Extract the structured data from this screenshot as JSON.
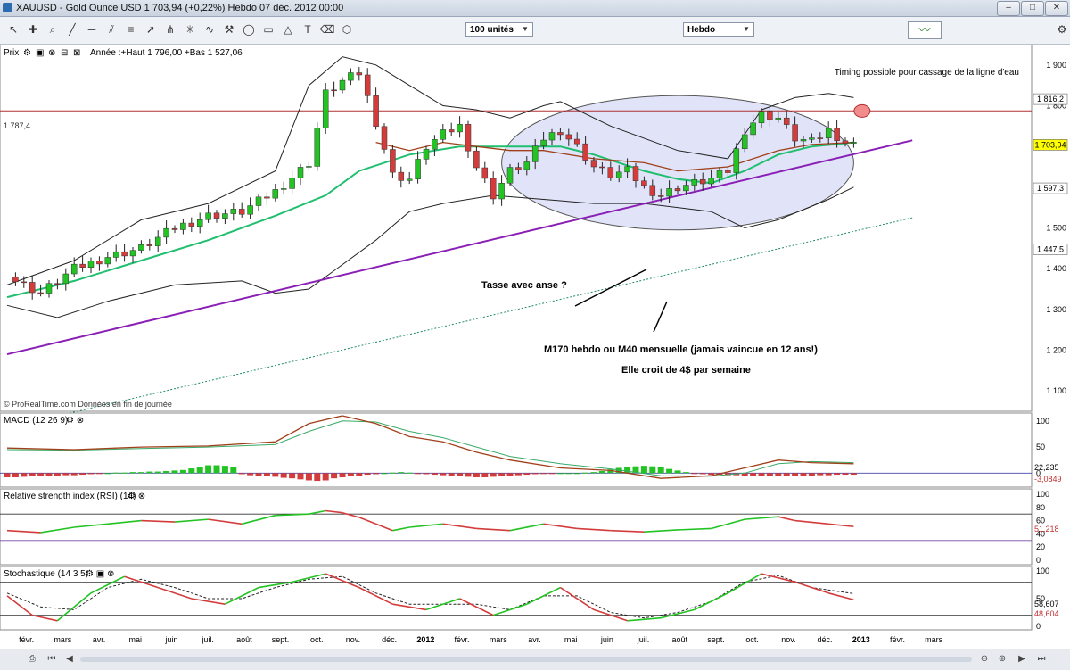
{
  "window": {
    "title": "XAUUSD - Gold Ounce USD     1 703,94 (+0,22%)     Hebdo   07 déc. 2012 00:00"
  },
  "toolbar": {
    "units_value": "100 unités",
    "period_value": "Hebdo"
  },
  "price_panel": {
    "header": "Prix",
    "legend": "Année :+Haut 1 796,00 +Bas 1 527,06",
    "note": "Timing possible pour cassage de la ligne d'eau",
    "annotation_tasse": "Tasse avec anse ?",
    "annotation_m170": "M170 hebdo ou M40 mensuelle (jamais vaincue en 12 ans!)",
    "annotation_slope": "Elle croit de 4$ par semaine",
    "source": "© ProRealTime.com  Données en fin de journée",
    "hline_label": "1 787,4",
    "price_tags": [
      {
        "value": 1816.2,
        "text": "1 816,2",
        "color": "#ffffff"
      },
      {
        "value": 1703.94,
        "text": "1 703,94",
        "color": "#ffff00"
      },
      {
        "value": 1597.3,
        "text": "1 597,3",
        "color": "#ffffff"
      },
      {
        "value": 1447.5,
        "text": "1 447,5",
        "color": "#ffffff"
      }
    ]
  },
  "macd_panel": {
    "header": "MACD (12 26 9)",
    "val1": "22,235",
    "val2": "-3,0849"
  },
  "rsi_panel": {
    "header": "Relative strength index (RSI) (14)",
    "val1": "51,218"
  },
  "stoch_panel": {
    "header": "Stochastique (14 3 5)",
    "val1": "58,607",
    "val2": "48,604"
  },
  "colors": {
    "up": "#22c322",
    "down": "#d43c3c",
    "ma_green": "#1fbf6f",
    "ma_brown": "#a0401a",
    "trendline": "#8a1fb5",
    "ellipse": "#c8ccf2",
    "hline": "#b03030"
  },
  "chart_data": [
    {
      "type": "candlestick",
      "timeframe": "weekly",
      "x_labels": [
        "févr.",
        "mars",
        "avr.",
        "mai",
        "juin",
        "juil.",
        "août",
        "sept.",
        "oct.",
        "nov.",
        "déc.",
        "2012",
        "févr.",
        "mars",
        "avr.",
        "mai",
        "juin",
        "juil.",
        "août",
        "sept.",
        "oct.",
        "nov.",
        "déc.",
        "2013",
        "févr.",
        "mars"
      ],
      "ylim": [
        1050,
        1950
      ],
      "yticks": [
        1100,
        1200,
        1300,
        1400,
        1500,
        1600,
        1700,
        1800,
        1900
      ],
      "ytick_labels": [
        "1 100",
        "1 200",
        "1 300",
        "1 400",
        "1 500",
        "1 600",
        "1 700",
        "1 800",
        "1 900"
      ],
      "close_points": [
        [
          0,
          1380
        ],
        [
          4,
          1340
        ],
        [
          8,
          1400
        ],
        [
          12,
          1430
        ],
        [
          16,
          1450
        ],
        [
          20,
          1500
        ],
        [
          24,
          1530
        ],
        [
          28,
          1540
        ],
        [
          32,
          1590
        ],
        [
          36,
          1660
        ],
        [
          38,
          1830
        ],
        [
          40,
          1860
        ],
        [
          42,
          1880
        ],
        [
          44,
          1760
        ],
        [
          46,
          1630
        ],
        [
          48,
          1620
        ],
        [
          50,
          1700
        ],
        [
          52,
          1730
        ],
        [
          54,
          1750
        ],
        [
          56,
          1650
        ],
        [
          58,
          1580
        ],
        [
          60,
          1640
        ],
        [
          62,
          1660
        ],
        [
          64,
          1720
        ],
        [
          66,
          1740
        ],
        [
          68,
          1700
        ],
        [
          70,
          1650
        ],
        [
          72,
          1630
        ],
        [
          74,
          1640
        ],
        [
          76,
          1600
        ],
        [
          78,
          1580
        ],
        [
          80,
          1600
        ],
        [
          82,
          1610
        ],
        [
          84,
          1620
        ],
        [
          86,
          1640
        ],
        [
          88,
          1740
        ],
        [
          90,
          1780
        ],
        [
          92,
          1770
        ],
        [
          94,
          1720
        ],
        [
          96,
          1710
        ],
        [
          98,
          1740
        ],
        [
          100,
          1710
        ],
        [
          101,
          1704
        ]
      ],
      "upper_band_points": [
        [
          0,
          1360
        ],
        [
          8,
          1420
        ],
        [
          16,
          1520
        ],
        [
          24,
          1560
        ],
        [
          32,
          1640
        ],
        [
          36,
          1850
        ],
        [
          40,
          1920
        ],
        [
          44,
          1900
        ],
        [
          48,
          1850
        ],
        [
          52,
          1800
        ],
        [
          56,
          1790
        ],
        [
          60,
          1770
        ],
        [
          64,
          1800
        ],
        [
          66,
          1810
        ],
        [
          72,
          1750
        ],
        [
          80,
          1690
        ],
        [
          86,
          1670
        ],
        [
          90,
          1790
        ],
        [
          94,
          1820
        ],
        [
          98,
          1830
        ],
        [
          101,
          1820
        ]
      ],
      "lower_band_points": [
        [
          0,
          1310
        ],
        [
          6,
          1280
        ],
        [
          12,
          1320
        ],
        [
          20,
          1360
        ],
        [
          28,
          1370
        ],
        [
          32,
          1340
        ],
        [
          36,
          1350
        ],
        [
          40,
          1410
        ],
        [
          44,
          1470
        ],
        [
          48,
          1540
        ],
        [
          52,
          1560
        ],
        [
          58,
          1580
        ],
        [
          64,
          1570
        ],
        [
          70,
          1560
        ],
        [
          76,
          1560
        ],
        [
          84,
          1540
        ],
        [
          88,
          1500
        ],
        [
          92,
          1520
        ],
        [
          98,
          1570
        ],
        [
          101,
          1600
        ]
      ],
      "ma_green_points": [
        [
          0,
          1330
        ],
        [
          8,
          1370
        ],
        [
          16,
          1420
        ],
        [
          24,
          1470
        ],
        [
          32,
          1530
        ],
        [
          38,
          1580
        ],
        [
          42,
          1640
        ],
        [
          48,
          1680
        ],
        [
          54,
          1700
        ],
        [
          60,
          1700
        ],
        [
          66,
          1700
        ],
        [
          70,
          1680
        ],
        [
          76,
          1640
        ],
        [
          80,
          1620
        ],
        [
          84,
          1610
        ],
        [
          88,
          1640
        ],
        [
          92,
          1680
        ],
        [
          96,
          1700
        ],
        [
          101,
          1710
        ]
      ],
      "ma_brown_points": [
        [
          44,
          1710
        ],
        [
          48,
          1690
        ],
        [
          52,
          1710
        ],
        [
          56,
          1700
        ],
        [
          60,
          1690
        ],
        [
          64,
          1690
        ],
        [
          70,
          1670
        ],
        [
          76,
          1660
        ],
        [
          80,
          1640
        ],
        [
          86,
          1650
        ],
        [
          92,
          1690
        ],
        [
          96,
          1705
        ],
        [
          101,
          1710
        ]
      ],
      "hline": 1787.4,
      "trendline": {
        "from": [
          0,
          1190
        ],
        "to": [
          108,
          1715
        ]
      },
      "m170_line": {
        "from": [
          0,
          1010
        ],
        "to": [
          108,
          1525
        ]
      },
      "ellipse_center": [
        80,
        1660
      ],
      "ellipse_radius": [
        21,
        165
      ],
      "circle_marker": [
        102,
        1787
      ]
    },
    {
      "type": "line",
      "name": "MACD (12 26 9)",
      "ylim": [
        -20,
        110
      ],
      "yticks": [
        0,
        50,
        100
      ],
      "macd": [
        [
          0,
          48
        ],
        [
          8,
          45
        ],
        [
          16,
          50
        ],
        [
          24,
          52
        ],
        [
          32,
          60
        ],
        [
          36,
          95
        ],
        [
          40,
          110
        ],
        [
          44,
          95
        ],
        [
          48,
          70
        ],
        [
          52,
          60
        ],
        [
          56,
          40
        ],
        [
          60,
          25
        ],
        [
          66,
          10
        ],
        [
          72,
          5
        ],
        [
          78,
          -10
        ],
        [
          84,
          -5
        ],
        [
          88,
          10
        ],
        [
          92,
          25
        ],
        [
          96,
          20
        ],
        [
          101,
          18
        ]
      ],
      "signal": [
        [
          0,
          45
        ],
        [
          8,
          44
        ],
        [
          16,
          47
        ],
        [
          24,
          50
        ],
        [
          32,
          55
        ],
        [
          36,
          80
        ],
        [
          40,
          100
        ],
        [
          44,
          98
        ],
        [
          48,
          80
        ],
        [
          52,
          68
        ],
        [
          56,
          50
        ],
        [
          60,
          32
        ],
        [
          66,
          18
        ],
        [
          72,
          8
        ],
        [
          78,
          -5
        ],
        [
          84,
          -6
        ],
        [
          88,
          0
        ],
        [
          92,
          18
        ],
        [
          96,
          22
        ],
        [
          101,
          20
        ]
      ],
      "histogram": [
        -8,
        -8,
        -7,
        -6,
        -6,
        -5,
        -5,
        -4,
        -4,
        -3,
        -2,
        -1,
        0,
        1,
        1,
        2,
        2,
        3,
        3,
        4,
        5,
        6,
        9,
        12,
        15,
        15,
        14,
        12,
        -2,
        -4,
        -5,
        -6,
        -7,
        -9,
        -10,
        -12,
        -14,
        -15,
        -14,
        -10,
        -8,
        -6,
        -5,
        -3,
        -2,
        0,
        1,
        2,
        1,
        -1,
        -2,
        -3,
        -4,
        -5,
        -6,
        -7,
        -8,
        -8,
        -7,
        -6,
        -5,
        -4,
        -3,
        -2,
        -1,
        -1,
        0,
        0,
        0,
        1,
        2,
        4,
        7,
        10,
        12,
        13,
        14,
        13,
        11,
        8,
        5,
        2,
        -1,
        -2,
        -3,
        -3,
        -4,
        -4,
        -5,
        -5,
        -5,
        -5,
        -5,
        -5,
        -5,
        -5,
        -5,
        -4,
        -4,
        -3,
        -3,
        -3
      ]
    },
    {
      "type": "line",
      "name": "Relative strength index (RSI) (14)",
      "ylim": [
        0,
        100
      ],
      "yticks": [
        0,
        20,
        40,
        60,
        80,
        100
      ],
      "levels": [
        70,
        30
      ],
      "rsi": [
        [
          0,
          45
        ],
        [
          4,
          42
        ],
        [
          8,
          50
        ],
        [
          12,
          55
        ],
        [
          16,
          60
        ],
        [
          20,
          58
        ],
        [
          24,
          62
        ],
        [
          28,
          55
        ],
        [
          32,
          68
        ],
        [
          36,
          70
        ],
        [
          38,
          75
        ],
        [
          40,
          72
        ],
        [
          42,
          65
        ],
        [
          44,
          55
        ],
        [
          46,
          45
        ],
        [
          48,
          50
        ],
        [
          52,
          55
        ],
        [
          56,
          48
        ],
        [
          60,
          45
        ],
        [
          64,
          55
        ],
        [
          68,
          48
        ],
        [
          72,
          45
        ],
        [
          76,
          43
        ],
        [
          80,
          46
        ],
        [
          84,
          48
        ],
        [
          88,
          62
        ],
        [
          92,
          66
        ],
        [
          94,
          60
        ],
        [
          98,
          55
        ],
        [
          101,
          51
        ]
      ]
    },
    {
      "type": "line",
      "name": "Stochastique (14 3 5)",
      "ylim": [
        0,
        100
      ],
      "yticks": [
        0,
        50,
        100
      ],
      "levels": [
        80,
        20
      ],
      "k": [
        [
          0,
          55
        ],
        [
          3,
          20
        ],
        [
          6,
          10
        ],
        [
          10,
          60
        ],
        [
          14,
          90
        ],
        [
          18,
          70
        ],
        [
          22,
          50
        ],
        [
          26,
          40
        ],
        [
          30,
          70
        ],
        [
          34,
          80
        ],
        [
          38,
          95
        ],
        [
          42,
          70
        ],
        [
          46,
          40
        ],
        [
          50,
          30
        ],
        [
          54,
          50
        ],
        [
          58,
          20
        ],
        [
          62,
          40
        ],
        [
          66,
          70
        ],
        [
          70,
          30
        ],
        [
          74,
          10
        ],
        [
          78,
          15
        ],
        [
          82,
          30
        ],
        [
          86,
          60
        ],
        [
          90,
          95
        ],
        [
          94,
          80
        ],
        [
          98,
          60
        ],
        [
          101,
          48
        ]
      ],
      "d": [
        [
          0,
          60
        ],
        [
          4,
          35
        ],
        [
          8,
          30
        ],
        [
          12,
          70
        ],
        [
          16,
          85
        ],
        [
          20,
          70
        ],
        [
          24,
          50
        ],
        [
          28,
          50
        ],
        [
          32,
          70
        ],
        [
          36,
          85
        ],
        [
          40,
          90
        ],
        [
          44,
          60
        ],
        [
          48,
          40
        ],
        [
          52,
          40
        ],
        [
          56,
          40
        ],
        [
          60,
          30
        ],
        [
          64,
          55
        ],
        [
          68,
          55
        ],
        [
          72,
          25
        ],
        [
          76,
          15
        ],
        [
          80,
          25
        ],
        [
          84,
          45
        ],
        [
          88,
          80
        ],
        [
          92,
          92
        ],
        [
          96,
          70
        ],
        [
          101,
          59
        ]
      ]
    }
  ]
}
